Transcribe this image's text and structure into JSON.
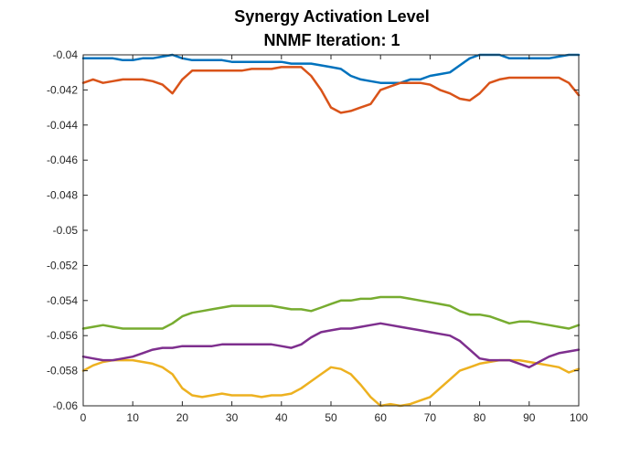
{
  "chart_data": {
    "type": "line",
    "title": "Synergy Activation Level",
    "subtitle": "NNMF Iteration: 1",
    "xlabel": "",
    "ylabel": "",
    "xlim": [
      0,
      100
    ],
    "ylim": [
      -0.06,
      -0.04
    ],
    "grid": false,
    "xticks": [
      0,
      10,
      20,
      30,
      40,
      50,
      60,
      70,
      80,
      90,
      100
    ],
    "xtick_labels": [
      "0",
      "10",
      "20",
      "30",
      "40",
      "50",
      "60",
      "70",
      "80",
      "90",
      "100"
    ],
    "yticks": [
      -0.06,
      -0.058,
      -0.056,
      -0.054,
      -0.052,
      -0.05,
      -0.048,
      -0.046,
      -0.044,
      -0.042,
      -0.04
    ],
    "ytick_labels": [
      "-0.06",
      "-0.058",
      "-0.056",
      "-0.054",
      "-0.052",
      "-0.05",
      "-0.048",
      "-0.046",
      "-0.044",
      "-0.042",
      "-0.04"
    ],
    "x": [
      0,
      2,
      4,
      6,
      8,
      10,
      12,
      14,
      16,
      18,
      20,
      22,
      24,
      26,
      28,
      30,
      32,
      34,
      36,
      38,
      40,
      42,
      44,
      46,
      48,
      50,
      52,
      54,
      56,
      58,
      60,
      62,
      64,
      66,
      68,
      70,
      72,
      74,
      76,
      78,
      80,
      82,
      84,
      86,
      88,
      90,
      92,
      94,
      96,
      98,
      100
    ],
    "series": [
      {
        "color": "#0072BD",
        "values": [
          -0.0402,
          -0.0402,
          -0.0402,
          -0.0402,
          -0.0403,
          -0.0403,
          -0.0402,
          -0.0402,
          -0.0401,
          -0.04,
          -0.0402,
          -0.0403,
          -0.0403,
          -0.0403,
          -0.0403,
          -0.0404,
          -0.0404,
          -0.0404,
          -0.0404,
          -0.0404,
          -0.0404,
          -0.0405,
          -0.0405,
          -0.0405,
          -0.0406,
          -0.0407,
          -0.0408,
          -0.0412,
          -0.0414,
          -0.0415,
          -0.0416,
          -0.0416,
          -0.0416,
          -0.0414,
          -0.0414,
          -0.0412,
          -0.0411,
          -0.041,
          -0.0406,
          -0.0402,
          -0.04,
          -0.04,
          -0.04,
          -0.0402,
          -0.0402,
          -0.0402,
          -0.0402,
          -0.0402,
          -0.0401,
          -0.04,
          -0.04
        ]
      },
      {
        "color": "#D95319",
        "values": [
          -0.0416,
          -0.0414,
          -0.0416,
          -0.0415,
          -0.0414,
          -0.0414,
          -0.0414,
          -0.0415,
          -0.0417,
          -0.0422,
          -0.0414,
          -0.0409,
          -0.0409,
          -0.0409,
          -0.0409,
          -0.0409,
          -0.0409,
          -0.0408,
          -0.0408,
          -0.0408,
          -0.0407,
          -0.0407,
          -0.0407,
          -0.0412,
          -0.042,
          -0.043,
          -0.0433,
          -0.0432,
          -0.043,
          -0.0428,
          -0.042,
          -0.0418,
          -0.0416,
          -0.0416,
          -0.0416,
          -0.0417,
          -0.042,
          -0.0422,
          -0.0425,
          -0.0426,
          -0.0422,
          -0.0416,
          -0.0414,
          -0.0413,
          -0.0413,
          -0.0413,
          -0.0413,
          -0.0413,
          -0.0413,
          -0.0416,
          -0.0423
        ]
      },
      {
        "color": "#EDB120",
        "values": [
          -0.058,
          -0.0577,
          -0.0575,
          -0.0574,
          -0.0574,
          -0.0574,
          -0.0575,
          -0.0576,
          -0.0578,
          -0.0582,
          -0.059,
          -0.0594,
          -0.0595,
          -0.0594,
          -0.0593,
          -0.0594,
          -0.0594,
          -0.0594,
          -0.0595,
          -0.0594,
          -0.0594,
          -0.0593,
          -0.059,
          -0.0586,
          -0.0582,
          -0.0578,
          -0.0579,
          -0.0582,
          -0.0588,
          -0.0595,
          -0.06,
          -0.0599,
          -0.06,
          -0.0599,
          -0.0597,
          -0.0595,
          -0.059,
          -0.0585,
          -0.058,
          -0.0578,
          -0.0576,
          -0.0575,
          -0.0574,
          -0.0574,
          -0.0574,
          -0.0575,
          -0.0576,
          -0.0577,
          -0.0578,
          -0.0581,
          -0.0579
        ]
      },
      {
        "color": "#7E2F8E",
        "values": [
          -0.0572,
          -0.0573,
          -0.0574,
          -0.0574,
          -0.0573,
          -0.0572,
          -0.057,
          -0.0568,
          -0.0567,
          -0.0567,
          -0.0566,
          -0.0566,
          -0.0566,
          -0.0566,
          -0.0565,
          -0.0565,
          -0.0565,
          -0.0565,
          -0.0565,
          -0.0565,
          -0.0566,
          -0.0567,
          -0.0565,
          -0.0561,
          -0.0558,
          -0.0557,
          -0.0556,
          -0.0556,
          -0.0555,
          -0.0554,
          -0.0553,
          -0.0554,
          -0.0555,
          -0.0556,
          -0.0557,
          -0.0558,
          -0.0559,
          -0.056,
          -0.0563,
          -0.0568,
          -0.0573,
          -0.0574,
          -0.0574,
          -0.0574,
          -0.0576,
          -0.0578,
          -0.0575,
          -0.0572,
          -0.057,
          -0.0569,
          -0.0568
        ]
      },
      {
        "color": "#77AC30",
        "values": [
          -0.0556,
          -0.0555,
          -0.0554,
          -0.0555,
          -0.0556,
          -0.0556,
          -0.0556,
          -0.0556,
          -0.0556,
          -0.0553,
          -0.0549,
          -0.0547,
          -0.0546,
          -0.0545,
          -0.0544,
          -0.0543,
          -0.0543,
          -0.0543,
          -0.0543,
          -0.0543,
          -0.0544,
          -0.0545,
          -0.0545,
          -0.0546,
          -0.0544,
          -0.0542,
          -0.054,
          -0.054,
          -0.0539,
          -0.0539,
          -0.0538,
          -0.0538,
          -0.0538,
          -0.0539,
          -0.054,
          -0.0541,
          -0.0542,
          -0.0543,
          -0.0546,
          -0.0548,
          -0.0548,
          -0.0549,
          -0.0551,
          -0.0553,
          -0.0552,
          -0.0552,
          -0.0553,
          -0.0554,
          -0.0555,
          -0.0556,
          -0.0554
        ]
      }
    ]
  }
}
